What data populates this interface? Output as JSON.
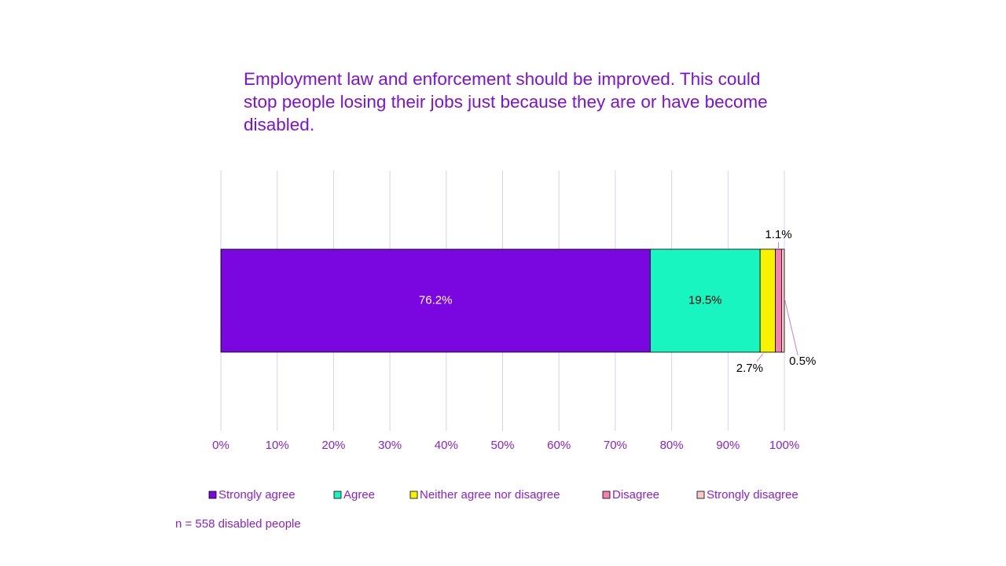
{
  "chart_data": {
    "type": "bar",
    "orientation": "horizontal",
    "stacked": true,
    "title": "Employment law and enforcement should be improved. This could stop people losing their jobs just because they are or have become disabled.",
    "categories": [
      null
    ],
    "series": [
      {
        "name": "Strongly agree",
        "color": "#7a06e0",
        "values": [
          76.2
        ],
        "value_labels": [
          "76.2%"
        ]
      },
      {
        "name": "Agree",
        "color": "#19f5c0",
        "values": [
          19.5
        ],
        "value_labels": [
          "19.5%"
        ]
      },
      {
        "name": "Neither agree nor disagree",
        "color": "#f7f200",
        "values": [
          2.7
        ],
        "value_labels": [
          "2.7%"
        ]
      },
      {
        "name": "Disagree",
        "color": "#f47fb0",
        "values": [
          1.1
        ],
        "value_labels": [
          "1.1%"
        ]
      },
      {
        "name": "Strongly disagree",
        "color": "#f9caca",
        "values": [
          0.5
        ],
        "value_labels": [
          "0.5%"
        ]
      }
    ],
    "xlim": [
      0,
      100
    ],
    "xticks": [
      {
        "value": 0,
        "label": "0%"
      },
      {
        "value": 10,
        "label": "10%"
      },
      {
        "value": 20,
        "label": "20%"
      },
      {
        "value": 30,
        "label": "30%"
      },
      {
        "value": 40,
        "label": "40%"
      },
      {
        "value": 50,
        "label": "50%"
      },
      {
        "value": 60,
        "label": "60%"
      },
      {
        "value": 70,
        "label": "70%"
      },
      {
        "value": 80,
        "label": "80%"
      },
      {
        "value": 90,
        "label": "90%"
      },
      {
        "value": 100,
        "label": "100%"
      }
    ],
    "grid": true,
    "legend": "bottom",
    "note": "n = 558 disabled people"
  }
}
